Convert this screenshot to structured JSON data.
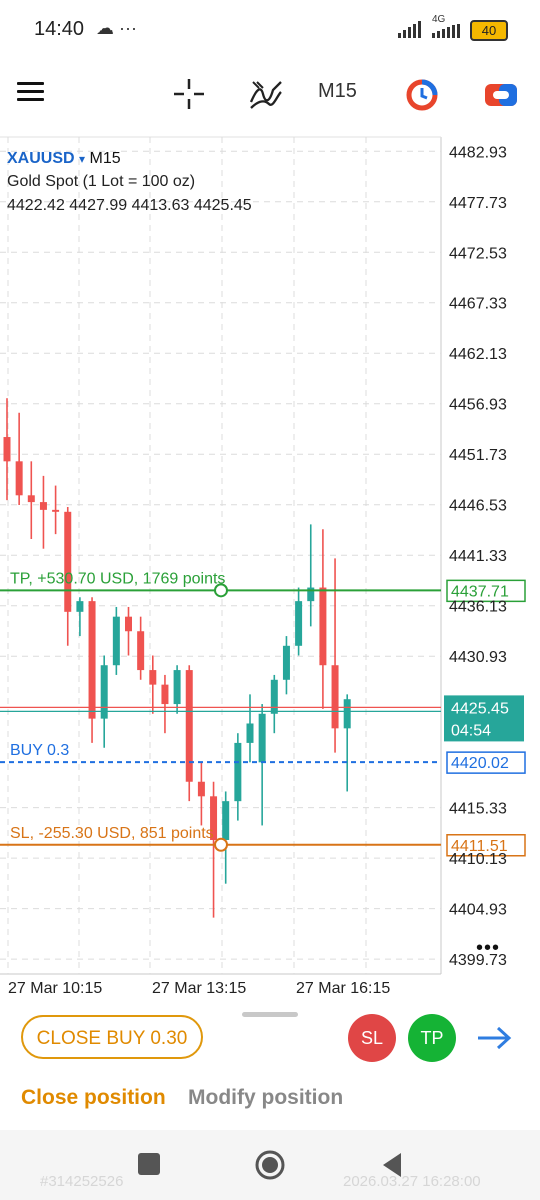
{
  "status_bar": {
    "time": "14:40",
    "left_icons": "☁ ···",
    "network": "4G",
    "battery": "40"
  },
  "toolbar": {
    "menu_icon": "hamburger-icon",
    "crosshair_icon": "crosshair-icon",
    "indicators_icon": "indicators-icon",
    "timeframe": "M15",
    "colors": {
      "accent_red": "#e8452c",
      "accent_blue": "#1f6fe0"
    }
  },
  "chart_header": {
    "symbol": "XAUUSD",
    "dropdown": "▾",
    "timeframe": "M15",
    "description": "Gold Spot (1 Lot = 100 oz)",
    "ohlc": "4422.42 4427.99 4413.63 4425.45"
  },
  "chart_data": {
    "type": "candlestick",
    "price_axis": {
      "labels": [
        "4482.93",
        "4477.73",
        "4472.53",
        "4467.33",
        "4462.13",
        "4456.93",
        "4451.73",
        "4446.53",
        "4441.33",
        "4436.13",
        "4430.93",
        "4415.33",
        "4410.13",
        "4404.93",
        "4399.73"
      ],
      "ylim": [
        4398.2,
        4484.4
      ],
      "grid": true
    },
    "time_axis": {
      "labels": [
        "27 Mar 10:15",
        "27 Mar 13:15",
        "27 Mar 16:15"
      ]
    },
    "candles": [
      {
        "o": 4453.5,
        "h": 4457.5,
        "l": 4447.0,
        "c": 4451.0
      },
      {
        "o": 4451.0,
        "h": 4456.0,
        "l": 4446.5,
        "c": 4447.5
      },
      {
        "o": 4447.5,
        "h": 4451.0,
        "l": 4443.0,
        "c": 4446.8
      },
      {
        "o": 4446.8,
        "h": 4449.5,
        "l": 4442.0,
        "c": 4446.0
      },
      {
        "o": 4446.0,
        "h": 4448.5,
        "l": 4443.5,
        "c": 4445.8
      },
      {
        "o": 4445.8,
        "h": 4446.3,
        "l": 4432.0,
        "c": 4435.5
      },
      {
        "o": 4435.5,
        "h": 4437.0,
        "l": 4433.0,
        "c": 4436.6
      },
      {
        "o": 4436.6,
        "h": 4437.0,
        "l": 4422.0,
        "c": 4424.5
      },
      {
        "o": 4424.5,
        "h": 4431.0,
        "l": 4421.5,
        "c": 4430.0
      },
      {
        "o": 4430.0,
        "h": 4436.0,
        "l": 4429.0,
        "c": 4435.0
      },
      {
        "o": 4435.0,
        "h": 4436.0,
        "l": 4431.0,
        "c": 4433.5
      },
      {
        "o": 4433.5,
        "h": 4435.0,
        "l": 4428.5,
        "c": 4429.5
      },
      {
        "o": 4429.5,
        "h": 4431.0,
        "l": 4425.0,
        "c": 4428.0
      },
      {
        "o": 4428.0,
        "h": 4429.0,
        "l": 4423.0,
        "c": 4426.0
      },
      {
        "o": 4426.0,
        "h": 4430.0,
        "l": 4425.0,
        "c": 4429.5
      },
      {
        "o": 4429.5,
        "h": 4430.0,
        "l": 4416.0,
        "c": 4418.0
      },
      {
        "o": 4418.0,
        "h": 4420.0,
        "l": 4413.5,
        "c": 4416.5
      },
      {
        "o": 4416.5,
        "h": 4418.0,
        "l": 4404.0,
        "c": 4412.0
      },
      {
        "o": 4412.0,
        "h": 4417.0,
        "l": 4407.5,
        "c": 4416.0
      },
      {
        "o": 4416.0,
        "h": 4423.0,
        "l": 4414.0,
        "c": 4422.0
      },
      {
        "o": 4422.0,
        "h": 4427.0,
        "l": 4420.0,
        "c": 4424.0
      },
      {
        "o": 4420.0,
        "h": 4426.0,
        "l": 4413.5,
        "c": 4425.0
      },
      {
        "o": 4425.0,
        "h": 4429.0,
        "l": 4423.0,
        "c": 4428.5
      },
      {
        "o": 4428.5,
        "h": 4433.0,
        "l": 4427.0,
        "c": 4432.0
      },
      {
        "o": 4432.0,
        "h": 4438.0,
        "l": 4431.0,
        "c": 4436.6
      },
      {
        "o": 4436.6,
        "h": 4444.5,
        "l": 4434.0,
        "c": 4438.0
      },
      {
        "o": 4438.0,
        "h": 4444.0,
        "l": 4425.5,
        "c": 4430.0
      },
      {
        "o": 4430.0,
        "h": 4441.0,
        "l": 4421.0,
        "c": 4423.5
      },
      {
        "o": 4423.5,
        "h": 4427.0,
        "l": 4417.0,
        "c": 4426.5
      }
    ],
    "levels": {
      "tp": {
        "price": 4437.71,
        "label": "TP, +530.70 USD, 1769 points",
        "tag": "4437.71",
        "color": "#2aa038"
      },
      "current": {
        "price": 4425.45,
        "tag": "4425.45",
        "countdown": "04:54",
        "color": "#26a69a"
      },
      "buy": {
        "price": 4420.02,
        "label": "BUY 0.3",
        "tag": "4420.02",
        "color": "#1f6fe0"
      },
      "sl": {
        "price": 4411.51,
        "label": "SL, -255.30 USD, 851 points",
        "tag": "4411.51",
        "color": "#d87417"
      }
    },
    "colors": {
      "bull": "#26a69a",
      "bear": "#ef5350"
    }
  },
  "more_menu": "•••",
  "bottom_panel": {
    "close_button": "CLOSE BUY 0.30",
    "sl_button": "SL",
    "tp_button": "TP",
    "arrow": "→",
    "tabs": [
      "Close position",
      "Modify position"
    ]
  },
  "footer": {
    "id": "#314252526",
    "date": "2026.03.27 16:28:00"
  }
}
